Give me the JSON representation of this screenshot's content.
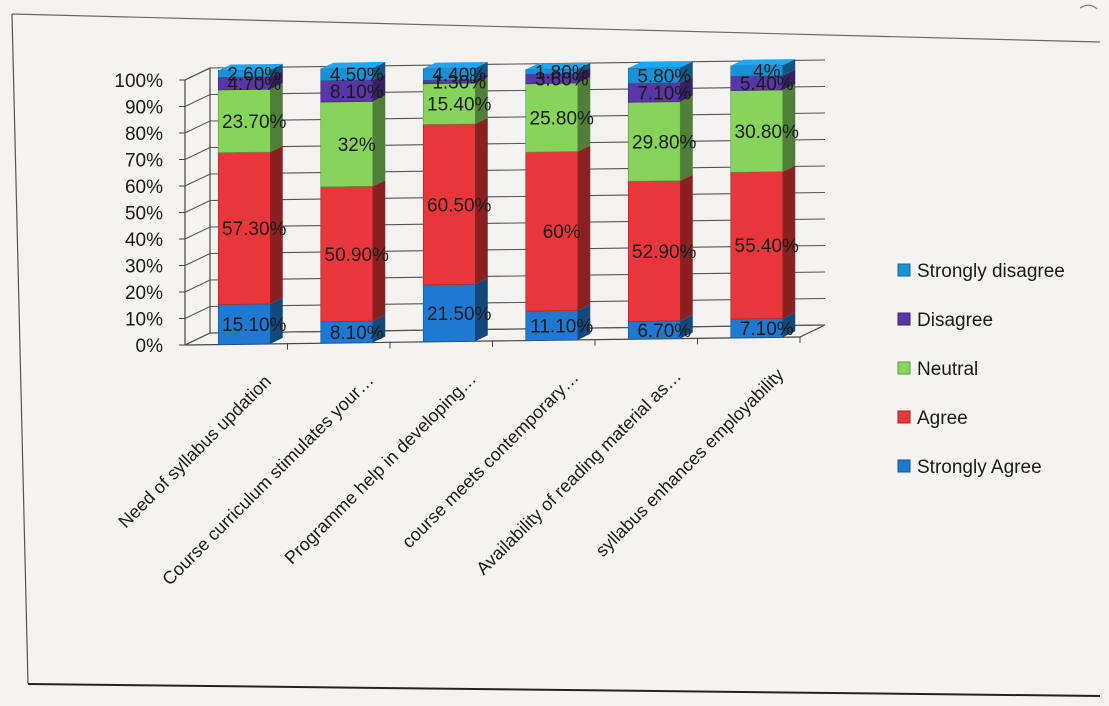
{
  "chart_data": {
    "type": "bar",
    "stacked": true,
    "percent": true,
    "three_d": true,
    "categories": [
      "Need of syllabus updation",
      "Course curriculum stimulates your…",
      "Programme help in developing…",
      "course meets contemporary…",
      "Availability of reading material as…",
      "syllabus enhances employability"
    ],
    "series": [
      {
        "name": "Strongly Agree",
        "color": "#1f78d1",
        "values": [
          15.1,
          8.1,
          21.5,
          11.1,
          6.7,
          7.1
        ],
        "labels": [
          "15.10%",
          "8.10%",
          "21.50%",
          "11.10%",
          "6.70%",
          "7.10%"
        ]
      },
      {
        "name": "Agree",
        "color": "#e8363b",
        "values": [
          57.3,
          50.9,
          60.5,
          60,
          52.9,
          55.4
        ],
        "labels": [
          "57.30%",
          "50.90%",
          "60.50%",
          "60%",
          "52.90%",
          "55.40%"
        ]
      },
      {
        "name": "Neutral",
        "color": "#86d45c",
        "values": [
          23.7,
          32,
          15.4,
          25.8,
          29.8,
          30.8
        ],
        "labels": [
          "23.70%",
          "32%",
          "15.40%",
          "25.80%",
          "29.80%",
          "30.80%"
        ]
      },
      {
        "name": "Disagree",
        "color": "#5a37a8",
        "values": [
          4.7,
          8.1,
          1.3,
          3.6,
          7.1,
          5.4
        ],
        "labels": [
          "4.70%",
          "8.10%",
          "1.30%",
          "3.60%",
          "7.10%",
          "5.40%"
        ]
      },
      {
        "name": "Strongly disagree",
        "color": "#1c90d6",
        "values": [
          2.6,
          4.5,
          4.4,
          1.8,
          5.8,
          4
        ],
        "labels": [
          "2.60%",
          "4.50%",
          "4.40%",
          "1.80%",
          "5.80%",
          "4%"
        ]
      }
    ],
    "y_ticks": [
      "0%",
      "10%",
      "20%",
      "30%",
      "40%",
      "50%",
      "60%",
      "70%",
      "80%",
      "90%",
      "100%"
    ],
    "ylim": [
      0,
      100
    ],
    "grid": true,
    "legend": "right"
  }
}
